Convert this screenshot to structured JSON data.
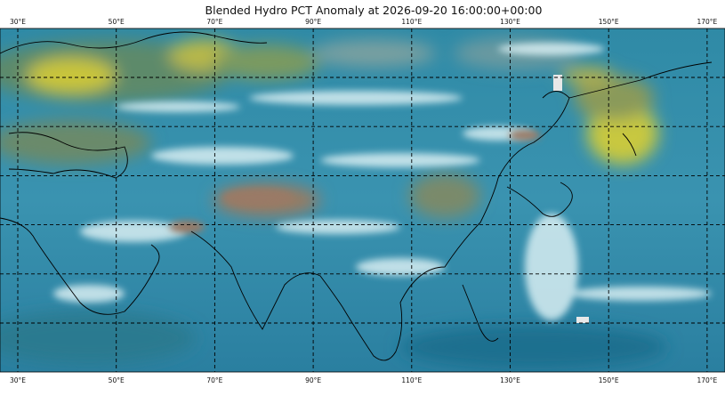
{
  "title": "Blended Hydro PCT Anomaly at 2026-09-20 16:00:00+00:00",
  "longitude_labels": [
    "30°E",
    "50°E",
    "70°E",
    "90°E",
    "110°E",
    "130°E",
    "150°E",
    "170°E"
  ]
}
